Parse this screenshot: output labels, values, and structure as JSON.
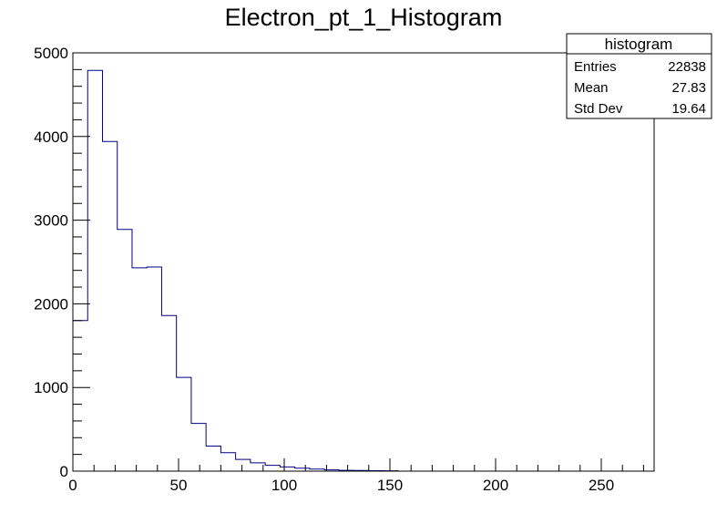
{
  "chart_data": {
    "type": "histogram",
    "title": "Electron_pt_1_Histogram",
    "xlabel": "",
    "ylabel": "",
    "xlim": [
      0,
      275
    ],
    "ylim": [
      0,
      5000
    ],
    "bin_width": 7,
    "bin_edges_start": 0,
    "values": [
      1800,
      4790,
      3940,
      2890,
      2430,
      2440,
      1860,
      1120,
      570,
      300,
      220,
      140,
      100,
      70,
      50,
      35,
      25,
      15,
      10,
      8,
      5,
      4,
      0,
      0,
      0,
      0,
      0,
      0,
      0,
      0,
      0,
      0,
      0,
      0,
      0,
      0,
      0,
      0,
      0
    ],
    "x_ticks": [
      0,
      50,
      100,
      150,
      200,
      250
    ],
    "y_ticks": [
      0,
      1000,
      2000,
      3000,
      4000,
      5000
    ],
    "line_color": "#000080",
    "grid": false,
    "stats_box": {
      "title": "histogram",
      "entries_label": "Entries",
      "entries_value": "22838",
      "mean_label": "Mean",
      "mean_value": "27.83",
      "std_label": "Std Dev",
      "std_value": "19.64"
    }
  }
}
